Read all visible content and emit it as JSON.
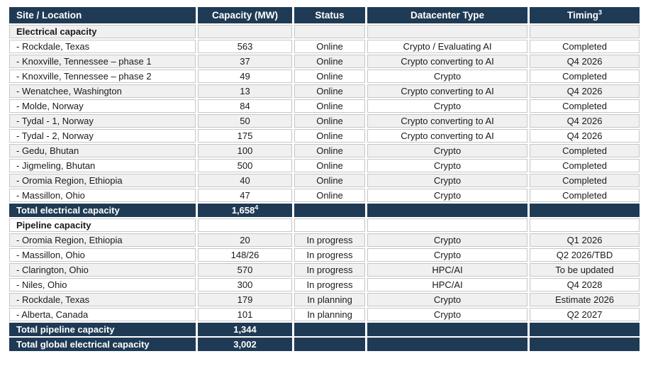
{
  "colors": {
    "navy": "#1f3a54",
    "gray_row": "#f0f0f0",
    "white_row": "#ffffff",
    "border": "#c6c6c6",
    "header_text": "#ffffff",
    "body_text": "#1a1a1a"
  },
  "table": {
    "columns": [
      {
        "label": "Site / Location",
        "sup": ""
      },
      {
        "label": "Capacity (MW)",
        "sup": ""
      },
      {
        "label": "Status",
        "sup": ""
      },
      {
        "label": "Datacenter Type",
        "sup": ""
      },
      {
        "label": "Timing",
        "sup": "3"
      }
    ],
    "rows": [
      {
        "type": "section",
        "shade": "gray",
        "site": "Electrical capacity",
        "capacity": "",
        "capacity_sup": "",
        "status": "",
        "datacenter_type": "",
        "timing": ""
      },
      {
        "type": "data",
        "shade": "white",
        "site": "- Rockdale, Texas",
        "capacity": "563",
        "capacity_sup": "",
        "status": "Online",
        "datacenter_type": "Crypto / Evaluating AI",
        "timing": "Completed"
      },
      {
        "type": "data",
        "shade": "gray",
        "site": "- Knoxville, Tennessee – phase 1",
        "capacity": "37",
        "capacity_sup": "",
        "status": "Online",
        "datacenter_type": "Crypto converting to AI",
        "timing": "Q4 2026"
      },
      {
        "type": "data",
        "shade": "white",
        "site": "- Knoxville, Tennessee – phase 2",
        "capacity": "49",
        "capacity_sup": "",
        "status": "Online",
        "datacenter_type": "Crypto",
        "timing": "Completed"
      },
      {
        "type": "data",
        "shade": "gray",
        "site": "- Wenatchee, Washington",
        "capacity": "13",
        "capacity_sup": "",
        "status": "Online",
        "datacenter_type": "Crypto converting to AI",
        "timing": "Q4 2026"
      },
      {
        "type": "data",
        "shade": "white",
        "site": "- Molde, Norway",
        "capacity": "84",
        "capacity_sup": "",
        "status": "Online",
        "datacenter_type": "Crypto",
        "timing": "Completed"
      },
      {
        "type": "data",
        "shade": "gray",
        "site": "- Tydal - 1, Norway",
        "capacity": "50",
        "capacity_sup": "",
        "status": "Online",
        "datacenter_type": "Crypto converting to AI",
        "timing": "Q4 2026"
      },
      {
        "type": "data",
        "shade": "white",
        "site": "- Tydal - 2, Norway",
        "capacity": "175",
        "capacity_sup": "",
        "status": "Online",
        "datacenter_type": "Crypto converting to AI",
        "timing": "Q4 2026"
      },
      {
        "type": "data",
        "shade": "gray",
        "site": "- Gedu, Bhutan",
        "capacity": "100",
        "capacity_sup": "",
        "status": "Online",
        "datacenter_type": "Crypto",
        "timing": "Completed"
      },
      {
        "type": "data",
        "shade": "white",
        "site": "- Jigmeling, Bhutan",
        "capacity": "500",
        "capacity_sup": "",
        "status": "Online",
        "datacenter_type": "Crypto",
        "timing": "Completed"
      },
      {
        "type": "data",
        "shade": "gray",
        "site": "- Oromia Region, Ethiopia",
        "capacity": "40",
        "capacity_sup": "",
        "status": "Online",
        "datacenter_type": "Crypto",
        "timing": "Completed"
      },
      {
        "type": "data",
        "shade": "white",
        "site": "- Massillon, Ohio",
        "capacity": "47",
        "capacity_sup": "",
        "status": "Online",
        "datacenter_type": "Crypto",
        "timing": "Completed"
      },
      {
        "type": "total",
        "shade": "navy",
        "site": "Total electrical capacity",
        "capacity": "1,658",
        "capacity_sup": "4",
        "status": "",
        "datacenter_type": "",
        "timing": ""
      },
      {
        "type": "section",
        "shade": "white",
        "site": "Pipeline capacity",
        "capacity": "",
        "capacity_sup": "",
        "status": "",
        "datacenter_type": "",
        "timing": ""
      },
      {
        "type": "data",
        "shade": "gray",
        "site": "- Oromia Region, Ethiopia",
        "capacity": "20",
        "capacity_sup": "",
        "status": "In progress",
        "datacenter_type": "Crypto",
        "timing": "Q1 2026"
      },
      {
        "type": "data",
        "shade": "white",
        "site": "- Massillon, Ohio",
        "capacity": "148/26",
        "capacity_sup": "",
        "status": "In progress",
        "datacenter_type": "Crypto",
        "timing": "Q2 2026/TBD"
      },
      {
        "type": "data",
        "shade": "gray",
        "site": "- Clarington, Ohio",
        "capacity": "570",
        "capacity_sup": "",
        "status": "In progress",
        "datacenter_type": "HPC/AI",
        "timing": "To be updated"
      },
      {
        "type": "data",
        "shade": "white",
        "site": "- Niles, Ohio",
        "capacity": "300",
        "capacity_sup": "",
        "status": "In progress",
        "datacenter_type": "HPC/AI",
        "timing": "Q4 2028"
      },
      {
        "type": "data",
        "shade": "gray",
        "site": "- Rockdale, Texas",
        "capacity": "179",
        "capacity_sup": "",
        "status": "In planning",
        "datacenter_type": "Crypto",
        "timing": "Estimate 2026"
      },
      {
        "type": "data",
        "shade": "white",
        "site": "- Alberta, Canada",
        "capacity": "101",
        "capacity_sup": "",
        "status": "In planning",
        "datacenter_type": "Crypto",
        "timing": "Q2 2027"
      },
      {
        "type": "total",
        "shade": "navy",
        "site": "Total pipeline capacity",
        "capacity": "1,344",
        "capacity_sup": "",
        "status": "",
        "datacenter_type": "",
        "timing": ""
      },
      {
        "type": "total",
        "shade": "navy",
        "site": "Total global electrical capacity",
        "capacity": "3,002",
        "capacity_sup": "",
        "status": "",
        "datacenter_type": "",
        "timing": ""
      }
    ]
  }
}
